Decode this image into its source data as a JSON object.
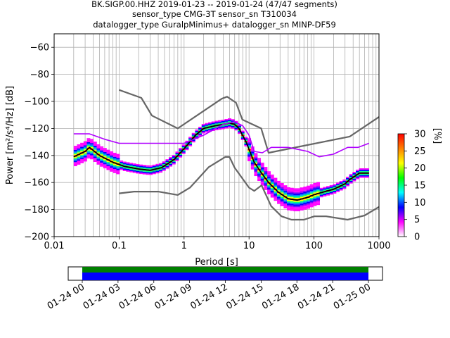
{
  "chart_data": {
    "type": "heatmap",
    "title_lines": [
      "BK.SIGP.00.HHZ   2019-01-23 -- 2019-01-24  (47/47 segments)",
      "sensor_type CMG-3T sensor_sn T310034",
      "datalogger_type GuralpMinimus+ datalogger_sn MINP-DF59"
    ],
    "xlabel": "Period [s]",
    "ylabel": "Power [m²/s⁴/Hz] [dB]",
    "xscale": "log",
    "xlim": [
      0.01,
      1000
    ],
    "ylim": [
      -200,
      -50
    ],
    "x_tick_values": [
      0.01,
      0.1,
      1,
      10,
      100,
      1000
    ],
    "x_tick_labels": [
      "0.01",
      "0.1",
      "1",
      "10",
      "100",
      "1000"
    ],
    "y_tick_values": [
      -200,
      -180,
      -160,
      -140,
      -120,
      -100,
      -80,
      -60
    ],
    "y_tick_labels": [
      "−200",
      "−180",
      "−160",
      "−140",
      "−120",
      "−100",
      "−80",
      "−60"
    ],
    "grid": true,
    "colorbar": {
      "label": "[%]",
      "range": [
        0,
        30
      ],
      "ticks": [
        0,
        5,
        10,
        15,
        20,
        25,
        30
      ],
      "colors": [
        "#ffffff",
        "#ff00ff",
        "#0000ff",
        "#00ffff",
        "#00ff00",
        "#ffff00",
        "#ff8000",
        "#ff0000"
      ]
    },
    "series": [
      {
        "role": "new-high-noise-model",
        "color": "#666666",
        "x": [
          0.1,
          0.22,
          0.32,
          0.8,
          3.8,
          4.6,
          6.3,
          7.9,
          15.4,
          20,
          354.8,
          1000
        ],
        "y": [
          -91.5,
          -97.4,
          -110.5,
          -120.0,
          -98.0,
          -96.5,
          -101.0,
          -113.5,
          -120.0,
          -138.0,
          -126.0,
          -111.5
        ]
      },
      {
        "role": "new-low-noise-model",
        "color": "#666666",
        "x": [
          0.1,
          0.17,
          0.4,
          0.8,
          1.24,
          2.4,
          4.3,
          5.0,
          6.0,
          10.0,
          12.0,
          15.6,
          21.9,
          31.6,
          45.0,
          70.0,
          101.0,
          154.0,
          328.0,
          600.0,
          1000
        ],
        "y": [
          -168.0,
          -166.7,
          -166.7,
          -169.2,
          -163.7,
          -148.6,
          -141.1,
          -141.1,
          -149.0,
          -163.8,
          -166.2,
          -162.1,
          -177.5,
          -185.0,
          -187.5,
          -187.5,
          -185.0,
          -185.0,
          -187.5,
          -184.4,
          -178.0
        ]
      },
      {
        "role": "mode",
        "color": "#000000",
        "x": [
          0.02,
          0.03,
          0.035,
          0.05,
          0.08,
          0.12,
          0.2,
          0.3,
          0.45,
          0.7,
          1.0,
          1.5,
          2.0,
          3.0,
          4.0,
          5.0,
          6.0,
          7.0,
          9.0,
          12,
          15,
          20,
          28,
          40,
          55,
          80,
          100,
          140,
          200,
          300,
          350,
          500,
          700
        ],
        "y": [
          -141,
          -137,
          -134,
          -140,
          -145,
          -148,
          -150,
          -151,
          -149,
          -143,
          -135,
          -125,
          -120,
          -118,
          -117,
          -116,
          -117,
          -120,
          -130,
          -145,
          -152,
          -160,
          -167,
          -172,
          -173,
          -171,
          -169,
          -167,
          -165,
          -161,
          -158,
          -153,
          -153
        ]
      },
      {
        "role": "high-percentile-trace",
        "color": "#b000ff",
        "x": [
          0.02,
          0.035,
          0.06,
          0.1,
          0.2,
          0.4,
          1.0,
          2.0,
          4.0,
          6.0,
          8.0,
          10.0,
          12.0,
          16.0,
          22.0,
          40.0,
          80.0,
          120.0,
          200.0,
          330.0,
          480.0,
          700.0
        ],
        "y": [
          -124,
          -124,
          -128,
          -131,
          -131,
          -131,
          -131,
          -125,
          -117,
          -115,
          -118,
          -125,
          -137,
          -138,
          -134,
          -134,
          -137,
          -141,
          -139,
          -134,
          -134,
          -131
        ]
      }
    ],
    "timeline": {
      "tick_labels": [
        "01-24 00",
        "01-24 03",
        "01-24 06",
        "01-24 09",
        "01-24 12",
        "01-24 15",
        "01-24 18",
        "01-24 21",
        "01-25 00"
      ],
      "colors": [
        "#008000",
        "#0000ff"
      ]
    }
  }
}
